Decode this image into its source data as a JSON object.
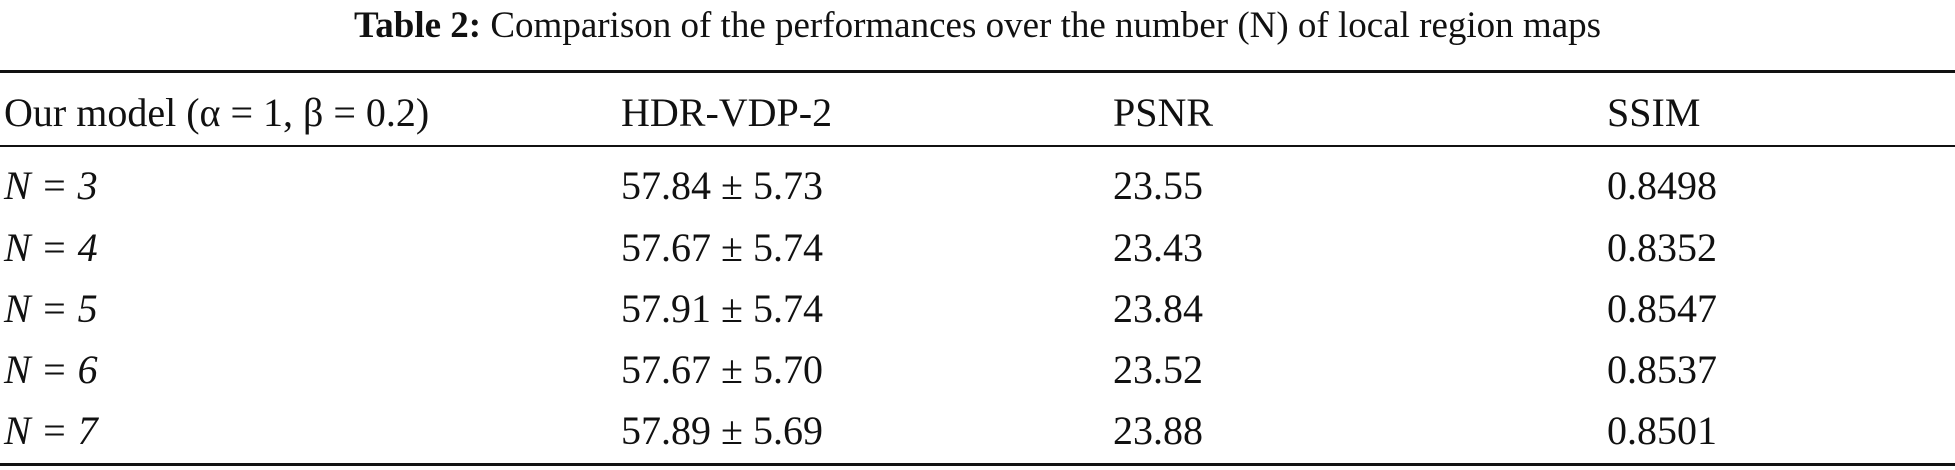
{
  "caption": {
    "label": "Table 2:",
    "text": "Comparison of the performances over the number (N) of local region maps"
  },
  "table": {
    "headers": [
      "Our model (α = 1, β = 0.2)",
      "HDR-VDP-2",
      "PSNR",
      "SSIM"
    ],
    "rows": [
      [
        "N = 3",
        "57.84 ± 5.73",
        "23.55",
        "0.8498"
      ],
      [
        "N = 4",
        "57.67 ± 5.74",
        "23.43",
        "0.8352"
      ],
      [
        "N = 5",
        "57.91 ± 5.74",
        "23.84",
        "0.8547"
      ],
      [
        "N = 6",
        "57.67 ± 5.70",
        "23.52",
        "0.8537"
      ],
      [
        "N = 7",
        "57.89 ± 5.69",
        "23.88",
        "0.8501"
      ]
    ]
  }
}
